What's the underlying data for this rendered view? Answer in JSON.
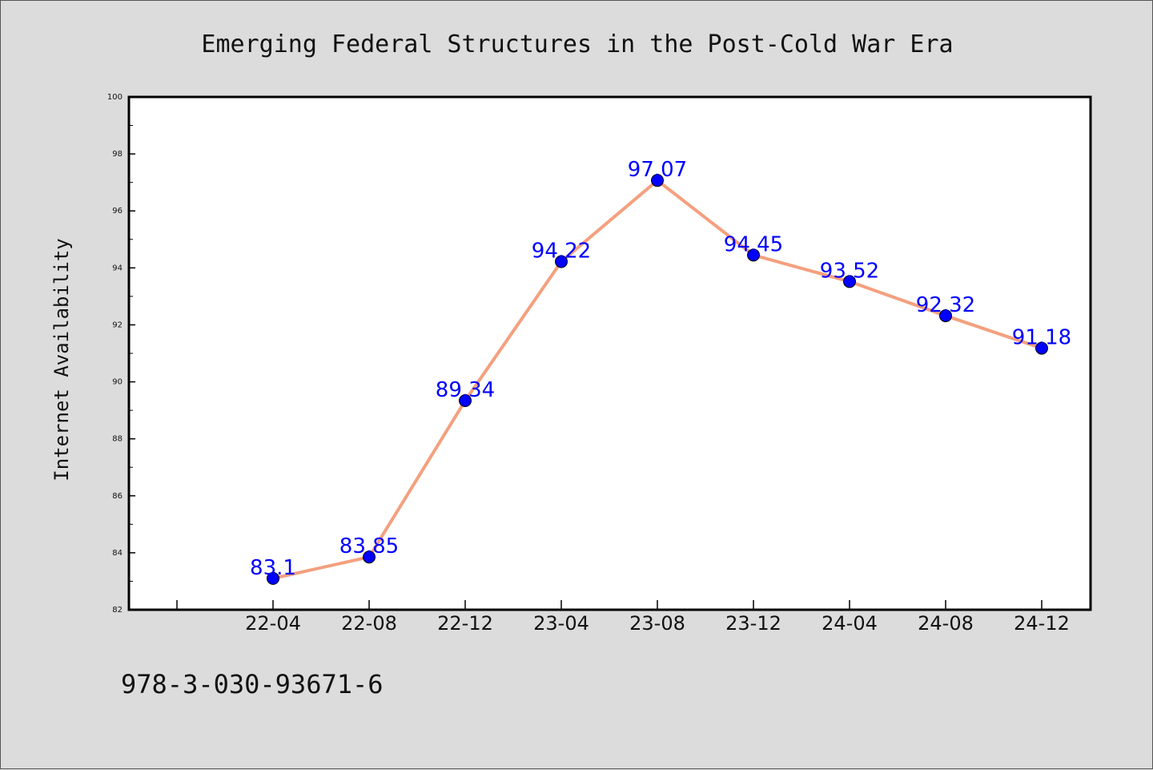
{
  "chart_data": {
    "type": "line",
    "title": "Emerging Federal Structures in the Post-Cold War Era",
    "xlabel": "",
    "ylabel": "Internet Availability",
    "categories": [
      "22-04",
      "22-08",
      "22-12",
      "23-04",
      "23-08",
      "23-12",
      "24-04",
      "24-08",
      "24-12"
    ],
    "values": [
      83.1,
      83.85,
      89.34,
      94.22,
      97.07,
      94.45,
      93.52,
      92.32,
      91.18
    ],
    "data_labels": [
      "83.1",
      "83.85",
      "89.34",
      "94.22",
      "97.07",
      "94.45",
      "93.52",
      "92.32",
      "91.18"
    ],
    "ylim": [
      82,
      100
    ],
    "y_ticks": [
      "82",
      "84",
      "86",
      "88",
      "90",
      "92",
      "94",
      "96",
      "98",
      "100"
    ],
    "grid": false,
    "legend": "none",
    "line_color": "#f4a07e",
    "marker_color": "#0000ff",
    "label_color": "#0000ff"
  },
  "footer": {
    "note": "978-3-030-93671-6"
  }
}
